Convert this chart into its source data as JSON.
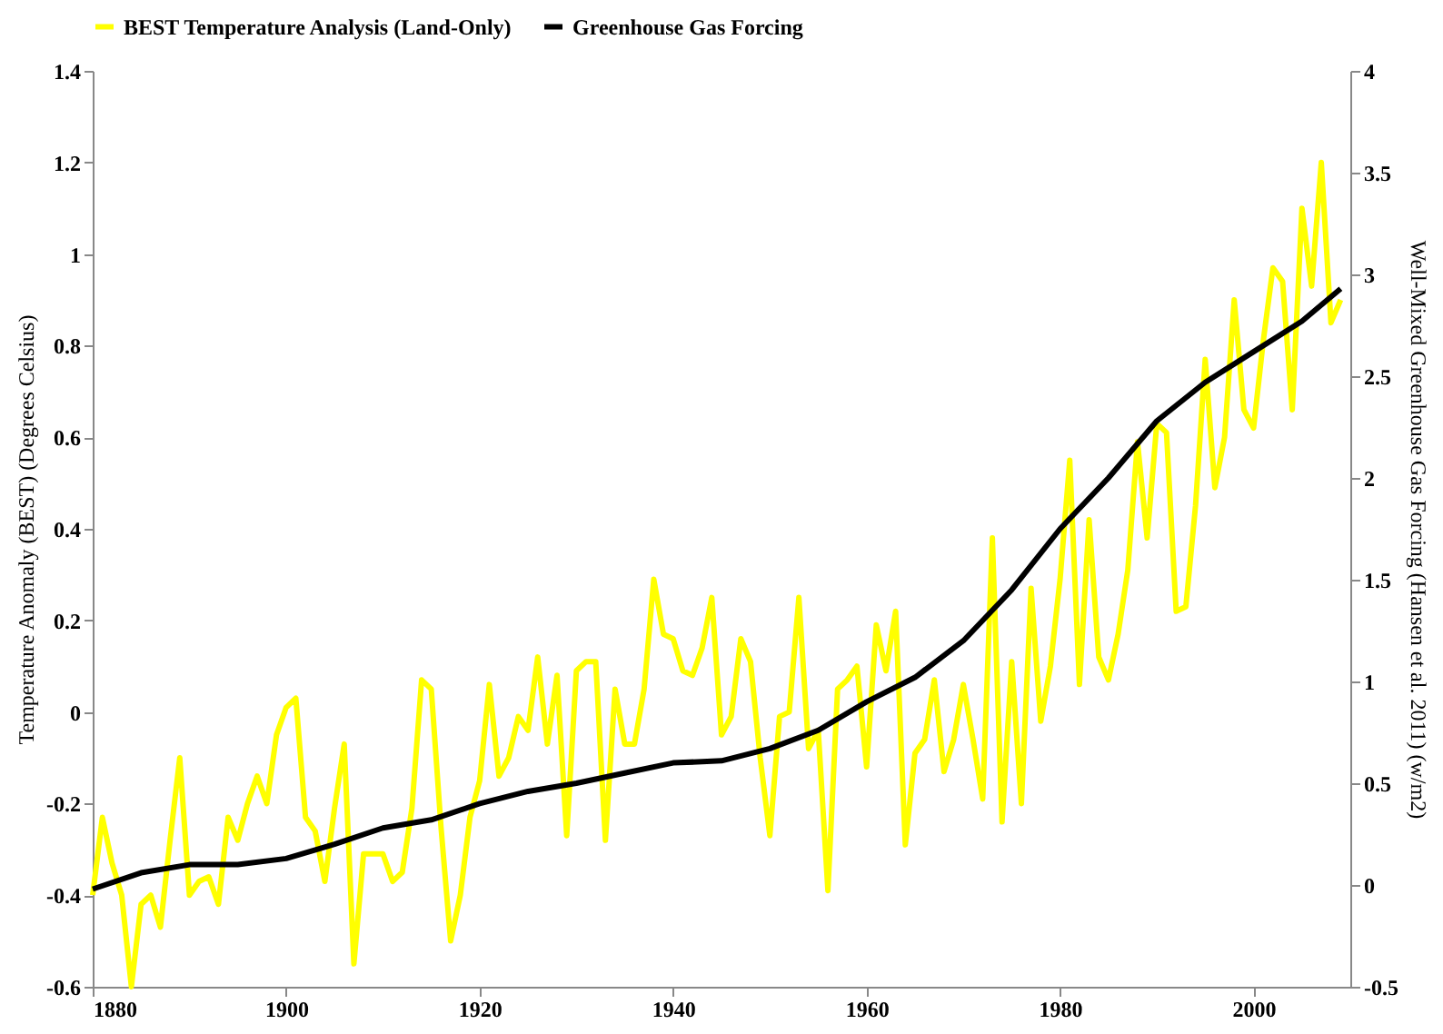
{
  "chart_data": {
    "type": "line",
    "xlabel": null,
    "ylabel": "Temperature Anomaly (BEST)  (Degrees Celsius)",
    "y2label": "Well-Mixed  Greenhouse Gas Forcing (Hansen et al. 2011)  (w/m2)",
    "xlim": [
      1880,
      2010
    ],
    "xticks": [
      1880,
      1900,
      1920,
      1940,
      1960,
      1980,
      2000
    ],
    "ylim": [
      -0.6,
      1.4
    ],
    "yticks": [
      -0.6,
      -0.4,
      -0.2,
      0,
      0.2,
      0.4,
      0.6,
      0.8,
      1,
      1.2,
      1.4
    ],
    "y2lim": [
      -0.5,
      4
    ],
    "y2ticks": [
      -0.5,
      0,
      0.5,
      1,
      1.5,
      2,
      2.5,
      3,
      3.5,
      4
    ],
    "grid": false,
    "legend": "top",
    "marker": "none",
    "line_style": "solid",
    "series": [
      {
        "name": "BEST Temperature Analysis (Land-Only)",
        "color": "#ffff00",
        "axis": "y",
        "x": [
          1880,
          1881,
          1882,
          1883,
          1884,
          1885,
          1886,
          1887,
          1888,
          1889,
          1890,
          1891,
          1892,
          1893,
          1894,
          1895,
          1896,
          1897,
          1898,
          1899,
          1900,
          1901,
          1902,
          1903,
          1904,
          1905,
          1906,
          1907,
          1908,
          1909,
          1910,
          1911,
          1912,
          1913,
          1914,
          1915,
          1916,
          1917,
          1918,
          1919,
          1920,
          1921,
          1922,
          1923,
          1924,
          1925,
          1926,
          1927,
          1928,
          1929,
          1930,
          1931,
          1932,
          1933,
          1934,
          1935,
          1936,
          1937,
          1938,
          1939,
          1940,
          1941,
          1942,
          1943,
          1944,
          1945,
          1946,
          1947,
          1948,
          1949,
          1950,
          1951,
          1952,
          1953,
          1954,
          1955,
          1956,
          1957,
          1958,
          1959,
          1960,
          1961,
          1962,
          1963,
          1964,
          1965,
          1966,
          1967,
          1968,
          1969,
          1970,
          1971,
          1972,
          1973,
          1974,
          1975,
          1976,
          1977,
          1978,
          1979,
          1980,
          1981,
          1982,
          1983,
          1984,
          1985,
          1986,
          1987,
          1988,
          1989,
          1990,
          1991,
          1992,
          1993,
          1994,
          1995,
          1996,
          1997,
          1998,
          1999,
          2000,
          2001,
          2002,
          2003,
          2004,
          2005,
          2006,
          2007,
          2008,
          2009
        ],
        "values": [
          -0.4,
          -0.23,
          -0.33,
          -0.4,
          -0.6,
          -0.42,
          -0.4,
          -0.47,
          -0.28,
          -0.1,
          -0.4,
          -0.37,
          -0.36,
          -0.42,
          -0.23,
          -0.28,
          -0.2,
          -0.14,
          -0.2,
          -0.05,
          0.01,
          0.03,
          -0.23,
          -0.26,
          -0.37,
          -0.21,
          -0.07,
          -0.55,
          -0.31,
          -0.31,
          -0.31,
          -0.37,
          -0.35,
          -0.21,
          0.07,
          0.05,
          -0.25,
          -0.5,
          -0.4,
          -0.23,
          -0.15,
          0.06,
          -0.14,
          -0.1,
          -0.01,
          -0.04,
          0.12,
          -0.07,
          0.08,
          -0.27,
          0.09,
          0.11,
          0.11,
          -0.28,
          0.05,
          -0.07,
          -0.07,
          0.05,
          0.29,
          0.17,
          0.16,
          0.09,
          0.08,
          0.14,
          0.25,
          -0.05,
          -0.01,
          0.16,
          0.11,
          -0.1,
          -0.27,
          -0.01,
          0.0,
          0.25,
          -0.08,
          -0.04,
          -0.39,
          0.05,
          0.07,
          0.1,
          -0.12,
          0.19,
          0.09,
          0.22,
          -0.29,
          -0.09,
          -0.06,
          0.07,
          -0.13,
          -0.06,
          0.06,
          -0.06,
          -0.19,
          0.38,
          -0.24,
          0.11,
          -0.2,
          0.27,
          -0.02,
          0.1,
          0.29,
          0.55,
          0.06,
          0.42,
          0.12,
          0.07,
          0.17,
          0.31,
          0.59,
          0.38,
          0.63,
          0.61,
          0.22,
          0.23,
          0.45,
          0.77,
          0.49,
          0.6,
          0.9,
          0.66,
          0.62,
          0.81,
          0.97,
          0.94,
          0.66,
          1.1,
          0.93,
          1.2,
          0.85,
          0.9
        ]
      },
      {
        "name": "Greenhouse Gas Forcing",
        "color": "#000000",
        "axis": "y2",
        "x": [
          1880,
          1885,
          1890,
          1895,
          1900,
          1905,
          1910,
          1915,
          1920,
          1925,
          1930,
          1935,
          1940,
          1945,
          1950,
          1955,
          1960,
          1965,
          1970,
          1975,
          1980,
          1985,
          1990,
          1995,
          2000,
          2005,
          2009
        ],
        "values": [
          -0.02,
          0.06,
          0.1,
          0.1,
          0.13,
          0.2,
          0.28,
          0.32,
          0.4,
          0.46,
          0.5,
          0.55,
          0.6,
          0.61,
          0.67,
          0.76,
          0.9,
          1.02,
          1.2,
          1.45,
          1.75,
          2.0,
          2.28,
          2.47,
          2.62,
          2.77,
          2.93
        ]
      }
    ]
  }
}
